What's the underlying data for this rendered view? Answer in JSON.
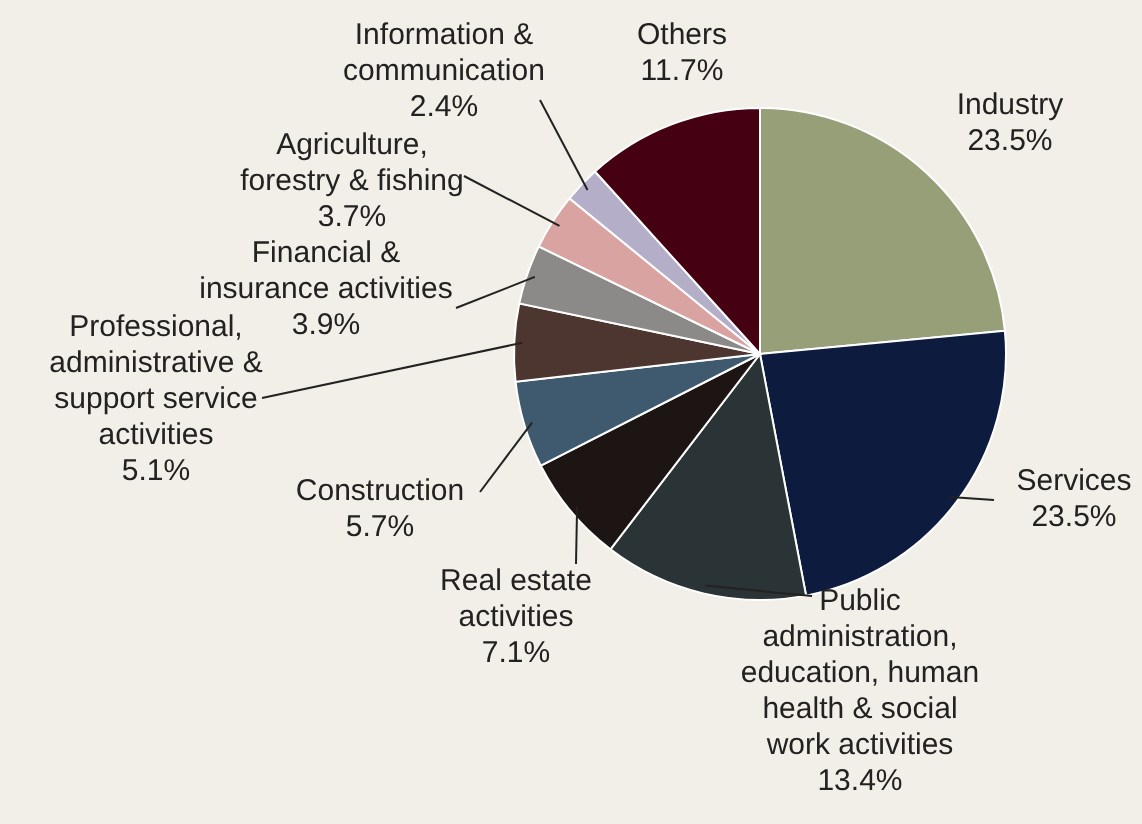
{
  "chart_data": {
    "type": "pie",
    "categories": [
      "Industry",
      "Services",
      "Public administration, education, human health & social work activities",
      "Real estate activities",
      "Construction",
      "Professional, administrative & support service activities",
      "Financial & insurance activities",
      "Agriculture, forestry & fishing",
      "Information & communication",
      "Others"
    ],
    "values": [
      23.5,
      23.5,
      13.4,
      7.1,
      5.7,
      5.1,
      3.9,
      3.7,
      2.4,
      11.7
    ],
    "value_labels": [
      "23.5%",
      "23.5%",
      "13.4%",
      "7.1%",
      "5.7%",
      "5.1%",
      "3.9%",
      "3.7%",
      "2.4%",
      "11.7%"
    ],
    "colors": [
      "#979f78",
      "#0c1b3e",
      "#2a3336",
      "#1d1513",
      "#3f5a6e",
      "#4e3630",
      "#8c8a88",
      "#d9a3a1",
      "#b4aec8",
      "#450012"
    ]
  }
}
